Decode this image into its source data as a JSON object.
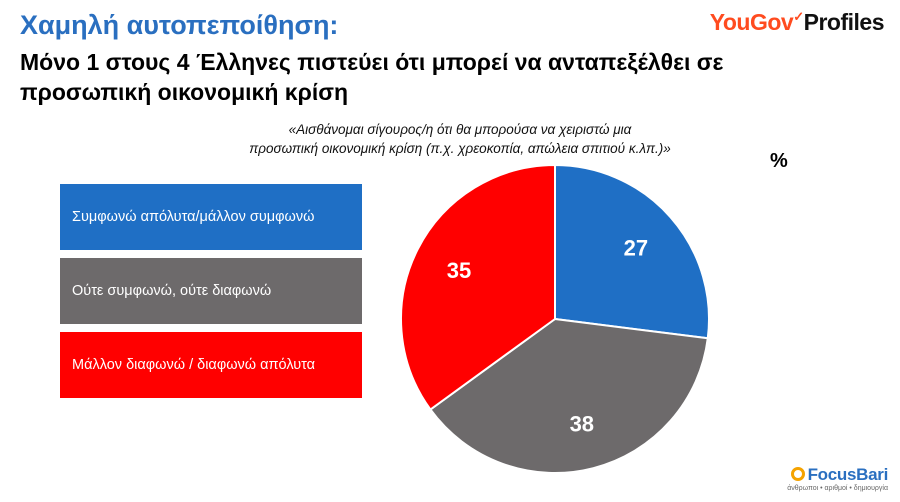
{
  "header": {
    "title_line1": "Χαμηλή αυτοπεποίθηση:",
    "title_line2": "Μόνο 1 στους 4 Έλληνες πιστεύει ότι μπορεί να ανταπεξέλθει σε προσωπική οικονομική κρίση"
  },
  "logo": {
    "brand": "YouGov",
    "tick": "✓",
    "product": "Profiles"
  },
  "question": {
    "line1": "«Αισθάνομαι σίγουρος/η ότι θα μπορούσα να χειριστώ μια",
    "line2": "προσωπική οικονομική κρίση (π.χ. χρεοκοπία, απώλεια σπιτιού κ.λπ.)»"
  },
  "unit": "%",
  "footer_logo": {
    "name": "FocusBari",
    "tagline": "άνθρωποι • αριθμοί • δημιουργία"
  },
  "chart_data": {
    "type": "pie",
    "title": "",
    "categories": [
      "Συμφωνώ απόλυτα/μάλλον συμφωνώ",
      "Ούτε συμφωνώ, ούτε διαφωνώ",
      "Μάλλον διαφωνώ / διαφωνώ απόλυτα"
    ],
    "values": [
      27,
      38,
      35
    ],
    "value_labels": [
      "27",
      "38",
      "35"
    ],
    "colors": [
      "#1f6fc5",
      "#6d6a6b",
      "#ff0000"
    ],
    "start": "12 o'clock, clockwise",
    "legend": "left"
  }
}
